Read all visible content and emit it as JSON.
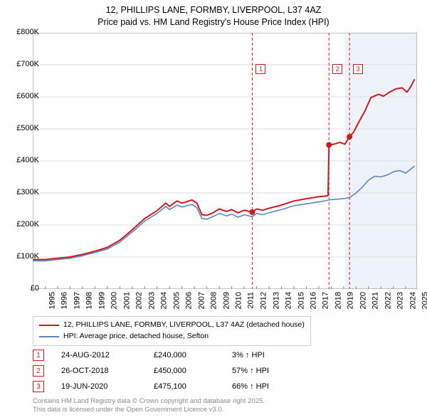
{
  "title_line1": "12, PHILLIPS LANE, FORMBY, LIVERPOOL, L37 4AZ",
  "title_line2": "Price paid vs. HM Land Registry's House Price Index (HPI)",
  "chart": {
    "type": "line",
    "background_color": "#ffffff",
    "grid_color": "#dcdcdc",
    "xmin": 1995,
    "xmax": 2025.9,
    "ymin": 0,
    "ymax": 800000,
    "ytick_step": 100000,
    "ytick_labels": [
      "£0",
      "£100K",
      "£200K",
      "£300K",
      "£400K",
      "£500K",
      "£600K",
      "£700K",
      "£800K"
    ],
    "xtick_step": 1,
    "xtick_labels": [
      "1995",
      "1996",
      "1997",
      "1998",
      "1999",
      "2000",
      "2001",
      "2002",
      "2003",
      "2004",
      "2005",
      "2006",
      "2007",
      "2008",
      "2009",
      "2010",
      "2011",
      "2012",
      "2013",
      "2014",
      "2015",
      "2016",
      "2017",
      "2018",
      "2019",
      "2020",
      "2021",
      "2022",
      "2023",
      "2024",
      "2025"
    ],
    "shaded_region": {
      "xstart": 2020.1,
      "xend": 2025.9,
      "color": "#eef3fa"
    },
    "series": [
      {
        "name": "price_paid",
        "color": "#d21919",
        "line_width": 2,
        "data": [
          [
            1995,
            92000
          ],
          [
            1996,
            92000
          ],
          [
            1997,
            96000
          ],
          [
            1998,
            100000
          ],
          [
            1999,
            108000
          ],
          [
            2000,
            118000
          ],
          [
            2001,
            130000
          ],
          [
            2002,
            152000
          ],
          [
            2003,
            185000
          ],
          [
            2004,
            220000
          ],
          [
            2005,
            245000
          ],
          [
            2005.7,
            268000
          ],
          [
            2006,
            258000
          ],
          [
            2006.6,
            275000
          ],
          [
            2007,
            268000
          ],
          [
            2007.8,
            278000
          ],
          [
            2008.2,
            268000
          ],
          [
            2008.6,
            232000
          ],
          [
            2009,
            230000
          ],
          [
            2009.5,
            238000
          ],
          [
            2010,
            250000
          ],
          [
            2010.6,
            242000
          ],
          [
            2011,
            248000
          ],
          [
            2011.5,
            238000
          ],
          [
            2012,
            246000
          ],
          [
            2012.65,
            240000
          ],
          [
            2013,
            250000
          ],
          [
            2013.5,
            246000
          ],
          [
            2014,
            252000
          ],
          [
            2015,
            262000
          ],
          [
            2016,
            275000
          ],
          [
            2017,
            282000
          ],
          [
            2018,
            288000
          ],
          [
            2018.5,
            290000
          ],
          [
            2018.75,
            292000
          ],
          [
            2018.82,
            450000
          ],
          [
            2019.2,
            452000
          ],
          [
            2019.7,
            458000
          ],
          [
            2020.1,
            452000
          ],
          [
            2020.47,
            475100
          ],
          [
            2020.8,
            490000
          ],
          [
            2021.2,
            520000
          ],
          [
            2021.7,
            555000
          ],
          [
            2022.2,
            598000
          ],
          [
            2022.8,
            608000
          ],
          [
            2023.2,
            602000
          ],
          [
            2023.7,
            615000
          ],
          [
            2024.2,
            625000
          ],
          [
            2024.7,
            628000
          ],
          [
            2025.1,
            615000
          ],
          [
            2025.4,
            632000
          ],
          [
            2025.7,
            655000
          ]
        ],
        "markers": [
          {
            "x": 2012.65,
            "y": 240000,
            "label": 1
          },
          {
            "x": 2018.82,
            "y": 450000,
            "label": 2
          },
          {
            "x": 2020.47,
            "y": 475100,
            "label": 3
          }
        ]
      },
      {
        "name": "hpi",
        "color": "#5b84c4",
        "line_width": 1.6,
        "data": [
          [
            1995,
            88000
          ],
          [
            1996,
            88000
          ],
          [
            1997,
            92000
          ],
          [
            1998,
            96000
          ],
          [
            1999,
            104000
          ],
          [
            2000,
            114000
          ],
          [
            2001,
            125000
          ],
          [
            2002,
            146000
          ],
          [
            2003,
            178000
          ],
          [
            2004,
            212000
          ],
          [
            2005,
            236000
          ],
          [
            2005.7,
            258000
          ],
          [
            2006,
            248000
          ],
          [
            2006.6,
            262000
          ],
          [
            2007,
            256000
          ],
          [
            2007.8,
            264000
          ],
          [
            2008.2,
            254000
          ],
          [
            2008.6,
            220000
          ],
          [
            2009,
            218000
          ],
          [
            2009.5,
            226000
          ],
          [
            2010,
            236000
          ],
          [
            2010.6,
            228000
          ],
          [
            2011,
            234000
          ],
          [
            2011.5,
            224000
          ],
          [
            2012,
            232000
          ],
          [
            2012.65,
            226000
          ],
          [
            2013,
            236000
          ],
          [
            2013.5,
            232000
          ],
          [
            2014,
            238000
          ],
          [
            2015,
            248000
          ],
          [
            2016,
            260000
          ],
          [
            2017,
            266000
          ],
          [
            2018,
            272000
          ],
          [
            2019,
            279000
          ],
          [
            2020,
            282000
          ],
          [
            2020.5,
            286000
          ],
          [
            2021,
            300000
          ],
          [
            2021.5,
            318000
          ],
          [
            2022,
            340000
          ],
          [
            2022.5,
            352000
          ],
          [
            2023,
            350000
          ],
          [
            2023.5,
            356000
          ],
          [
            2024,
            366000
          ],
          [
            2024.5,
            370000
          ],
          [
            2025,
            362000
          ],
          [
            2025.7,
            384000
          ]
        ]
      }
    ],
    "vlines": [
      {
        "x": 2012.65,
        "color": "#d21919",
        "dash": "4,3"
      },
      {
        "x": 2018.82,
        "color": "#d21919",
        "dash": "4,3"
      },
      {
        "x": 2020.47,
        "color": "#d21919",
        "dash": "4,3"
      }
    ]
  },
  "legend": {
    "items": [
      {
        "color": "#d21919",
        "label": "12, PHILLIPS LANE, FORMBY, LIVERPOOL, L37 4AZ (detached house)"
      },
      {
        "color": "#5b84c4",
        "label": "HPI: Average price, detached house, Sefton"
      }
    ]
  },
  "transactions": [
    {
      "n": "1",
      "date": "24-AUG-2012",
      "price": "£240,000",
      "hpi": "3% ↑ HPI"
    },
    {
      "n": "2",
      "date": "26-OCT-2018",
      "price": "£450,000",
      "hpi": "57% ↑ HPI"
    },
    {
      "n": "3",
      "date": "19-JUN-2020",
      "price": "£475,100",
      "hpi": "66% ↑ HPI"
    }
  ],
  "footer_line1": "Contains HM Land Registry data © Crown copyright and database right 2025.",
  "footer_line2": "This data is licensed under the Open Government Licence v3.0."
}
